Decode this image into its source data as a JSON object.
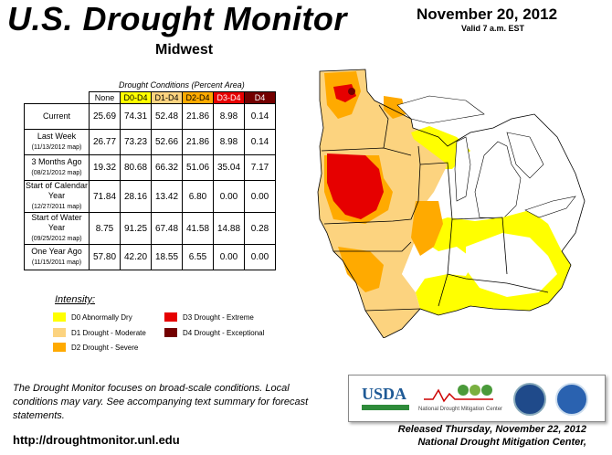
{
  "header": {
    "title": "U.S. Drought Monitor",
    "region": "Midwest",
    "date": "November 20, 2012",
    "valid": "Valid 7 a.m. EST"
  },
  "table": {
    "caption": "Drought Conditions (Percent Area)",
    "columns": [
      "None",
      "D0-D4",
      "D1-D4",
      "D2-D4",
      "D3-D4",
      "D4"
    ],
    "rows": [
      {
        "label": "Current",
        "sub": "",
        "values": [
          "25.69",
          "74.31",
          "52.48",
          "21.86",
          "8.98",
          "0.14"
        ]
      },
      {
        "label": "Last Week",
        "sub": "(11/13/2012 map)",
        "values": [
          "26.77",
          "73.23",
          "52.66",
          "21.86",
          "8.98",
          "0.14"
        ]
      },
      {
        "label": "3 Months Ago",
        "sub": "(08/21/2012 map)",
        "values": [
          "19.32",
          "80.68",
          "66.32",
          "51.06",
          "35.04",
          "7.17"
        ]
      },
      {
        "label": "Start of Calendar Year",
        "sub": "(12/27/2011 map)",
        "values": [
          "71.84",
          "28.16",
          "13.42",
          "6.80",
          "0.00",
          "0.00"
        ]
      },
      {
        "label": "Start of Water Year",
        "sub": "(09/25/2012 map)",
        "values": [
          "8.75",
          "91.25",
          "67.48",
          "41.58",
          "14.88",
          "0.28"
        ]
      },
      {
        "label": "One Year Ago",
        "sub": "(11/15/2011 map)",
        "values": [
          "57.80",
          "42.20",
          "18.55",
          "6.55",
          "0.00",
          "0.00"
        ]
      }
    ]
  },
  "legend": {
    "title": "Intensity:",
    "items": [
      {
        "label": "D0 Abnormally Dry",
        "color": "#ffff00"
      },
      {
        "label": "D1 Drought - Moderate",
        "color": "#fcd37f"
      },
      {
        "label": "D2 Drought - Severe",
        "color": "#ffaa00"
      },
      {
        "label": "D3 Drought - Extreme",
        "color": "#e60000"
      },
      {
        "label": "D4 Drought - Exceptional",
        "color": "#730000"
      }
    ]
  },
  "footnote": "The Drought Monitor focuses on broad-scale conditions. Local conditions may vary. See accompanying text summary for forecast statements.",
  "url": "http://droughtmonitor.unl.edu",
  "logos": {
    "usda": "USDA",
    "ndmc": "National Drought Mitigation Center"
  },
  "released": {
    "line1": "Released Thursday, November 22, 2012",
    "line2": "National Drought Mitigation Center,"
  }
}
